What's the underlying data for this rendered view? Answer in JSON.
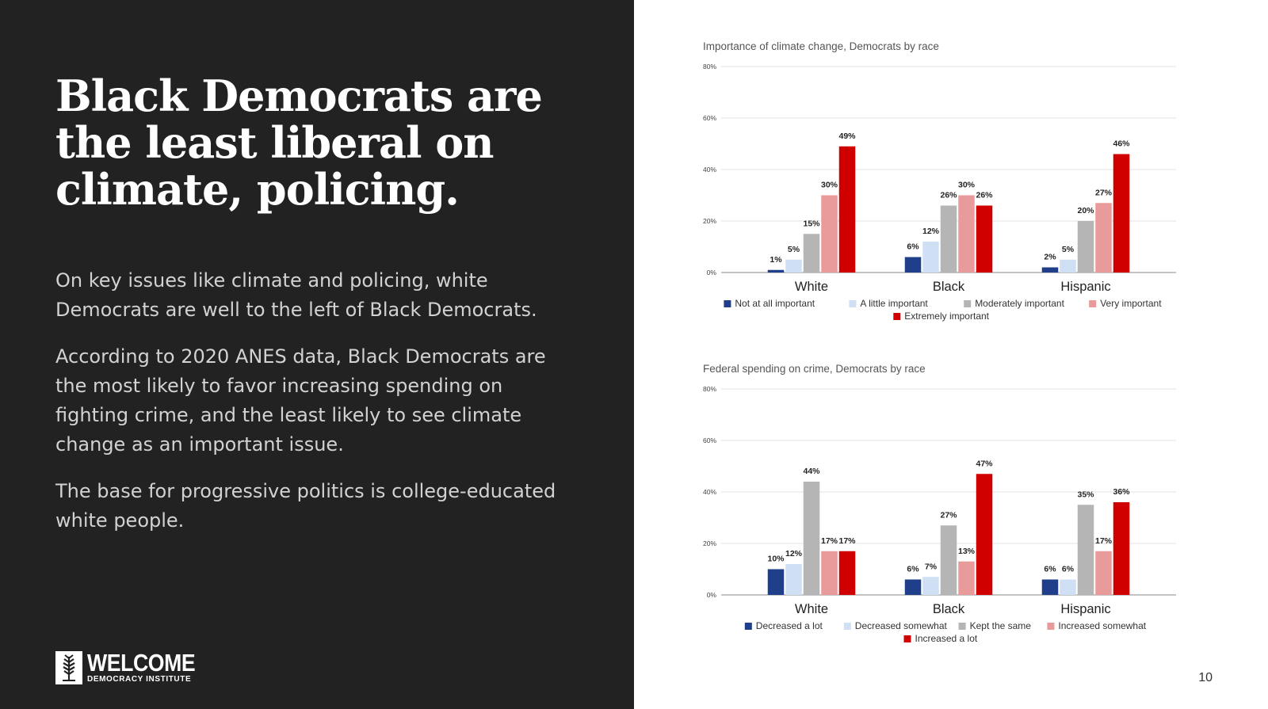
{
  "slide": {
    "headline": "Black Democrats are the least liberal on climate, policing.",
    "paragraphs": [
      "On key issues like climate and policing, white Democrats are well to the left of Black Democrats.",
      "According to 2020 ANES data, Black Democrats are the most likely to favor increasing spending on fighting crime, and the least likely to see climate change as an important issue.",
      "The base for progressive politics is college-educated white people."
    ],
    "logo": {
      "word": "WELCOME",
      "subtitle": "DEMOCRACY INSTITUTE"
    },
    "page_number": "10"
  },
  "colors": {
    "left_background": "#222222",
    "series": [
      "#1f3f8a",
      "#cfe0f5",
      "#b5b5b5",
      "#e99a9a",
      "#d00000"
    ]
  },
  "chart_data": [
    {
      "type": "bar",
      "title": "Importance of climate change, Democrats by race",
      "categories": [
        "White",
        "Black",
        "Hispanic"
      ],
      "ylim": [
        0,
        80
      ],
      "yticks": [
        "0%",
        "20%",
        "40%",
        "60%",
        "80%"
      ],
      "grid": true,
      "legend_position": "bottom",
      "series": [
        {
          "name": "Not at all important",
          "values": [
            1,
            6,
            2
          ],
          "labels": [
            "1%",
            "6%",
            "2%"
          ]
        },
        {
          "name": "A little important",
          "values": [
            5,
            12,
            5
          ],
          "labels": [
            "5%",
            "12%",
            "5%"
          ]
        },
        {
          "name": "Moderately important",
          "values": [
            15,
            26,
            20
          ],
          "labels": [
            "15%",
            "26%",
            "20%"
          ]
        },
        {
          "name": "Very important",
          "values": [
            30,
            30,
            27
          ],
          "labels": [
            "30%",
            "30%",
            "27%"
          ]
        },
        {
          "name": "Extremely important",
          "values": [
            49,
            26,
            46
          ],
          "labels": [
            "49%",
            "26%",
            "46%"
          ]
        }
      ]
    },
    {
      "type": "bar",
      "title": "Federal spending on crime, Democrats by race",
      "categories": [
        "White",
        "Black",
        "Hispanic"
      ],
      "ylim": [
        0,
        80
      ],
      "yticks": [
        "0%",
        "20%",
        "40%",
        "60%",
        "80%"
      ],
      "grid": true,
      "legend_position": "bottom",
      "series": [
        {
          "name": "Decreased a lot",
          "values": [
            10,
            6,
            6
          ],
          "labels": [
            "10%",
            "6%",
            "6%"
          ]
        },
        {
          "name": "Decreased somewhat",
          "values": [
            12,
            7,
            6
          ],
          "labels": [
            "12%",
            "7%",
            "6%"
          ]
        },
        {
          "name": "Kept the same",
          "values": [
            44,
            27,
            35
          ],
          "labels": [
            "44%",
            "27%",
            "35%"
          ]
        },
        {
          "name": "Increased somewhat",
          "values": [
            17,
            13,
            17
          ],
          "labels": [
            "17%",
            "13%",
            "17%"
          ]
        },
        {
          "name": "Increased a lot",
          "values": [
            17,
            47,
            36
          ],
          "labels": [
            "17%",
            "47%",
            "36%"
          ]
        }
      ]
    }
  ]
}
